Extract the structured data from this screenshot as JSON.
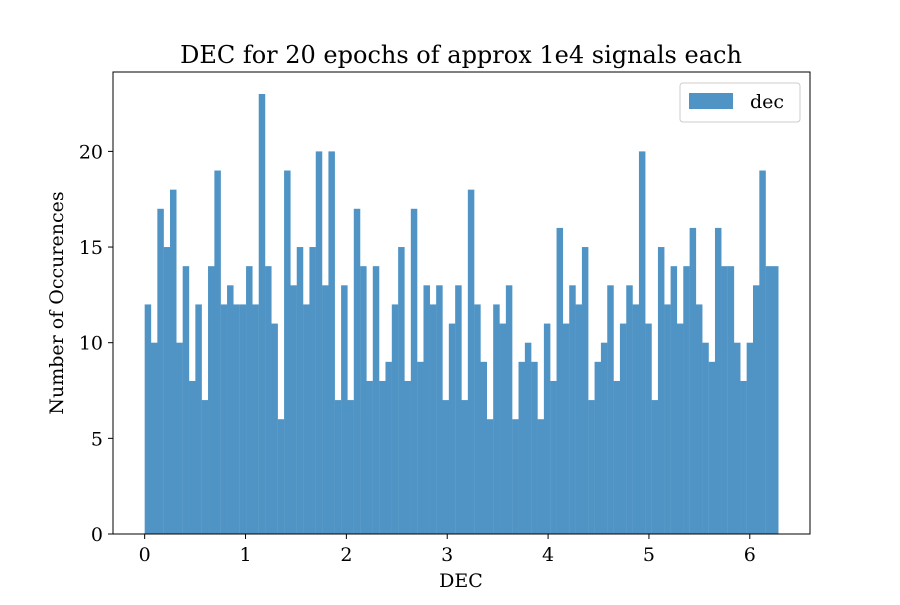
{
  "chart_data": {
    "type": "bar",
    "title": "DEC for 20 epochs of approx 1e4 signals each",
    "xlabel": "DEC",
    "ylabel": "Number of Occurences",
    "xlim": [
      -0.314,
      6.597
    ],
    "ylim": [
      0,
      24.15
    ],
    "x_range": [
      0,
      6.283
    ],
    "bins": 100,
    "xticks": [
      "0",
      "1",
      "2",
      "3",
      "4",
      "5",
      "6"
    ],
    "yticks": [
      "0",
      "5",
      "10",
      "15",
      "20"
    ],
    "grid": false,
    "legend_position": "top-right",
    "bar_color": "#4f94c4",
    "series": [
      {
        "name": "dec",
        "values": [
          12,
          10,
          17,
          15,
          18,
          10,
          14,
          8,
          12,
          7,
          14,
          19,
          12,
          13,
          12,
          12,
          14,
          12,
          23,
          14,
          11,
          6,
          19,
          13,
          15,
          12,
          15,
          20,
          13,
          20,
          7,
          13,
          7,
          17,
          14,
          8,
          14,
          8,
          9,
          12,
          15,
          8,
          17,
          9,
          13,
          12,
          13,
          7,
          11,
          13,
          7,
          18,
          12,
          9,
          6,
          12,
          11,
          13,
          6,
          9,
          10,
          9,
          6,
          11,
          8,
          16,
          11,
          13,
          12,
          15,
          7,
          9,
          10,
          13,
          8,
          11,
          13,
          12,
          20,
          11,
          7,
          15,
          12,
          14,
          11,
          14,
          16,
          12,
          10,
          9,
          16,
          14,
          14,
          10,
          8,
          10,
          13,
          19,
          14,
          14
        ]
      }
    ]
  }
}
